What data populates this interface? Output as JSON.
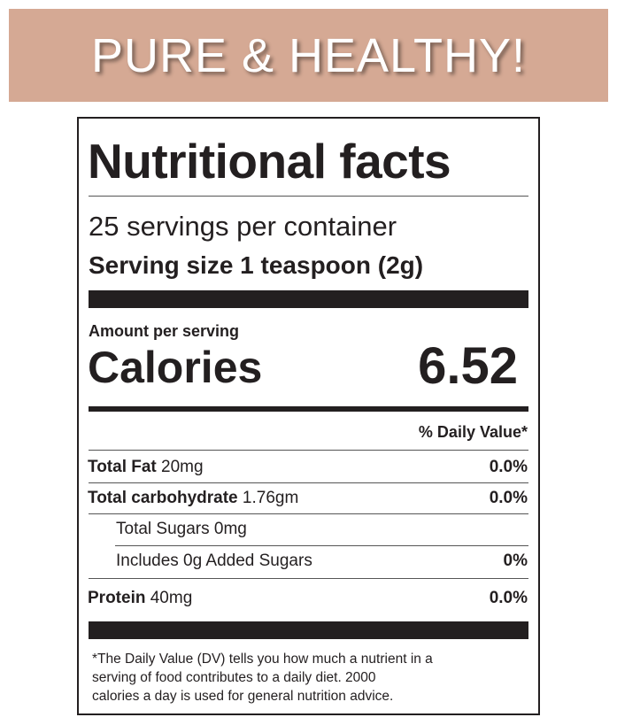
{
  "banner": {
    "title": "PURE & HEALTHY!"
  },
  "label": {
    "title": "Nutritional facts",
    "servings": "25 servings per container",
    "serving_size": "Serving size 1 teaspoon (2g)",
    "amount_per_serving": "Amount per serving",
    "calories_label": "Calories",
    "calories_value": "6.52",
    "daily_value_header": "% Daily Value*",
    "rows": [
      {
        "name": "Total Fat",
        "amount": "20mg",
        "dv": "0.0%"
      },
      {
        "name": "Total carbohydrate",
        "amount": "1.76gm",
        "dv": "0.0%"
      },
      {
        "name": "Total Sugars 0mg"
      },
      {
        "name": "Includes 0g Added Sugars",
        "dv": "0%"
      },
      {
        "name": "Protein",
        "amount": "40mg",
        "dv": "0.0%"
      }
    ],
    "footnote": [
      "*The Daily Value (DV) tells you how much a nutrient in a",
      "serving of food contributes to a daily diet. 2000",
      "calories a day is used for general nutrition advice."
    ]
  }
}
